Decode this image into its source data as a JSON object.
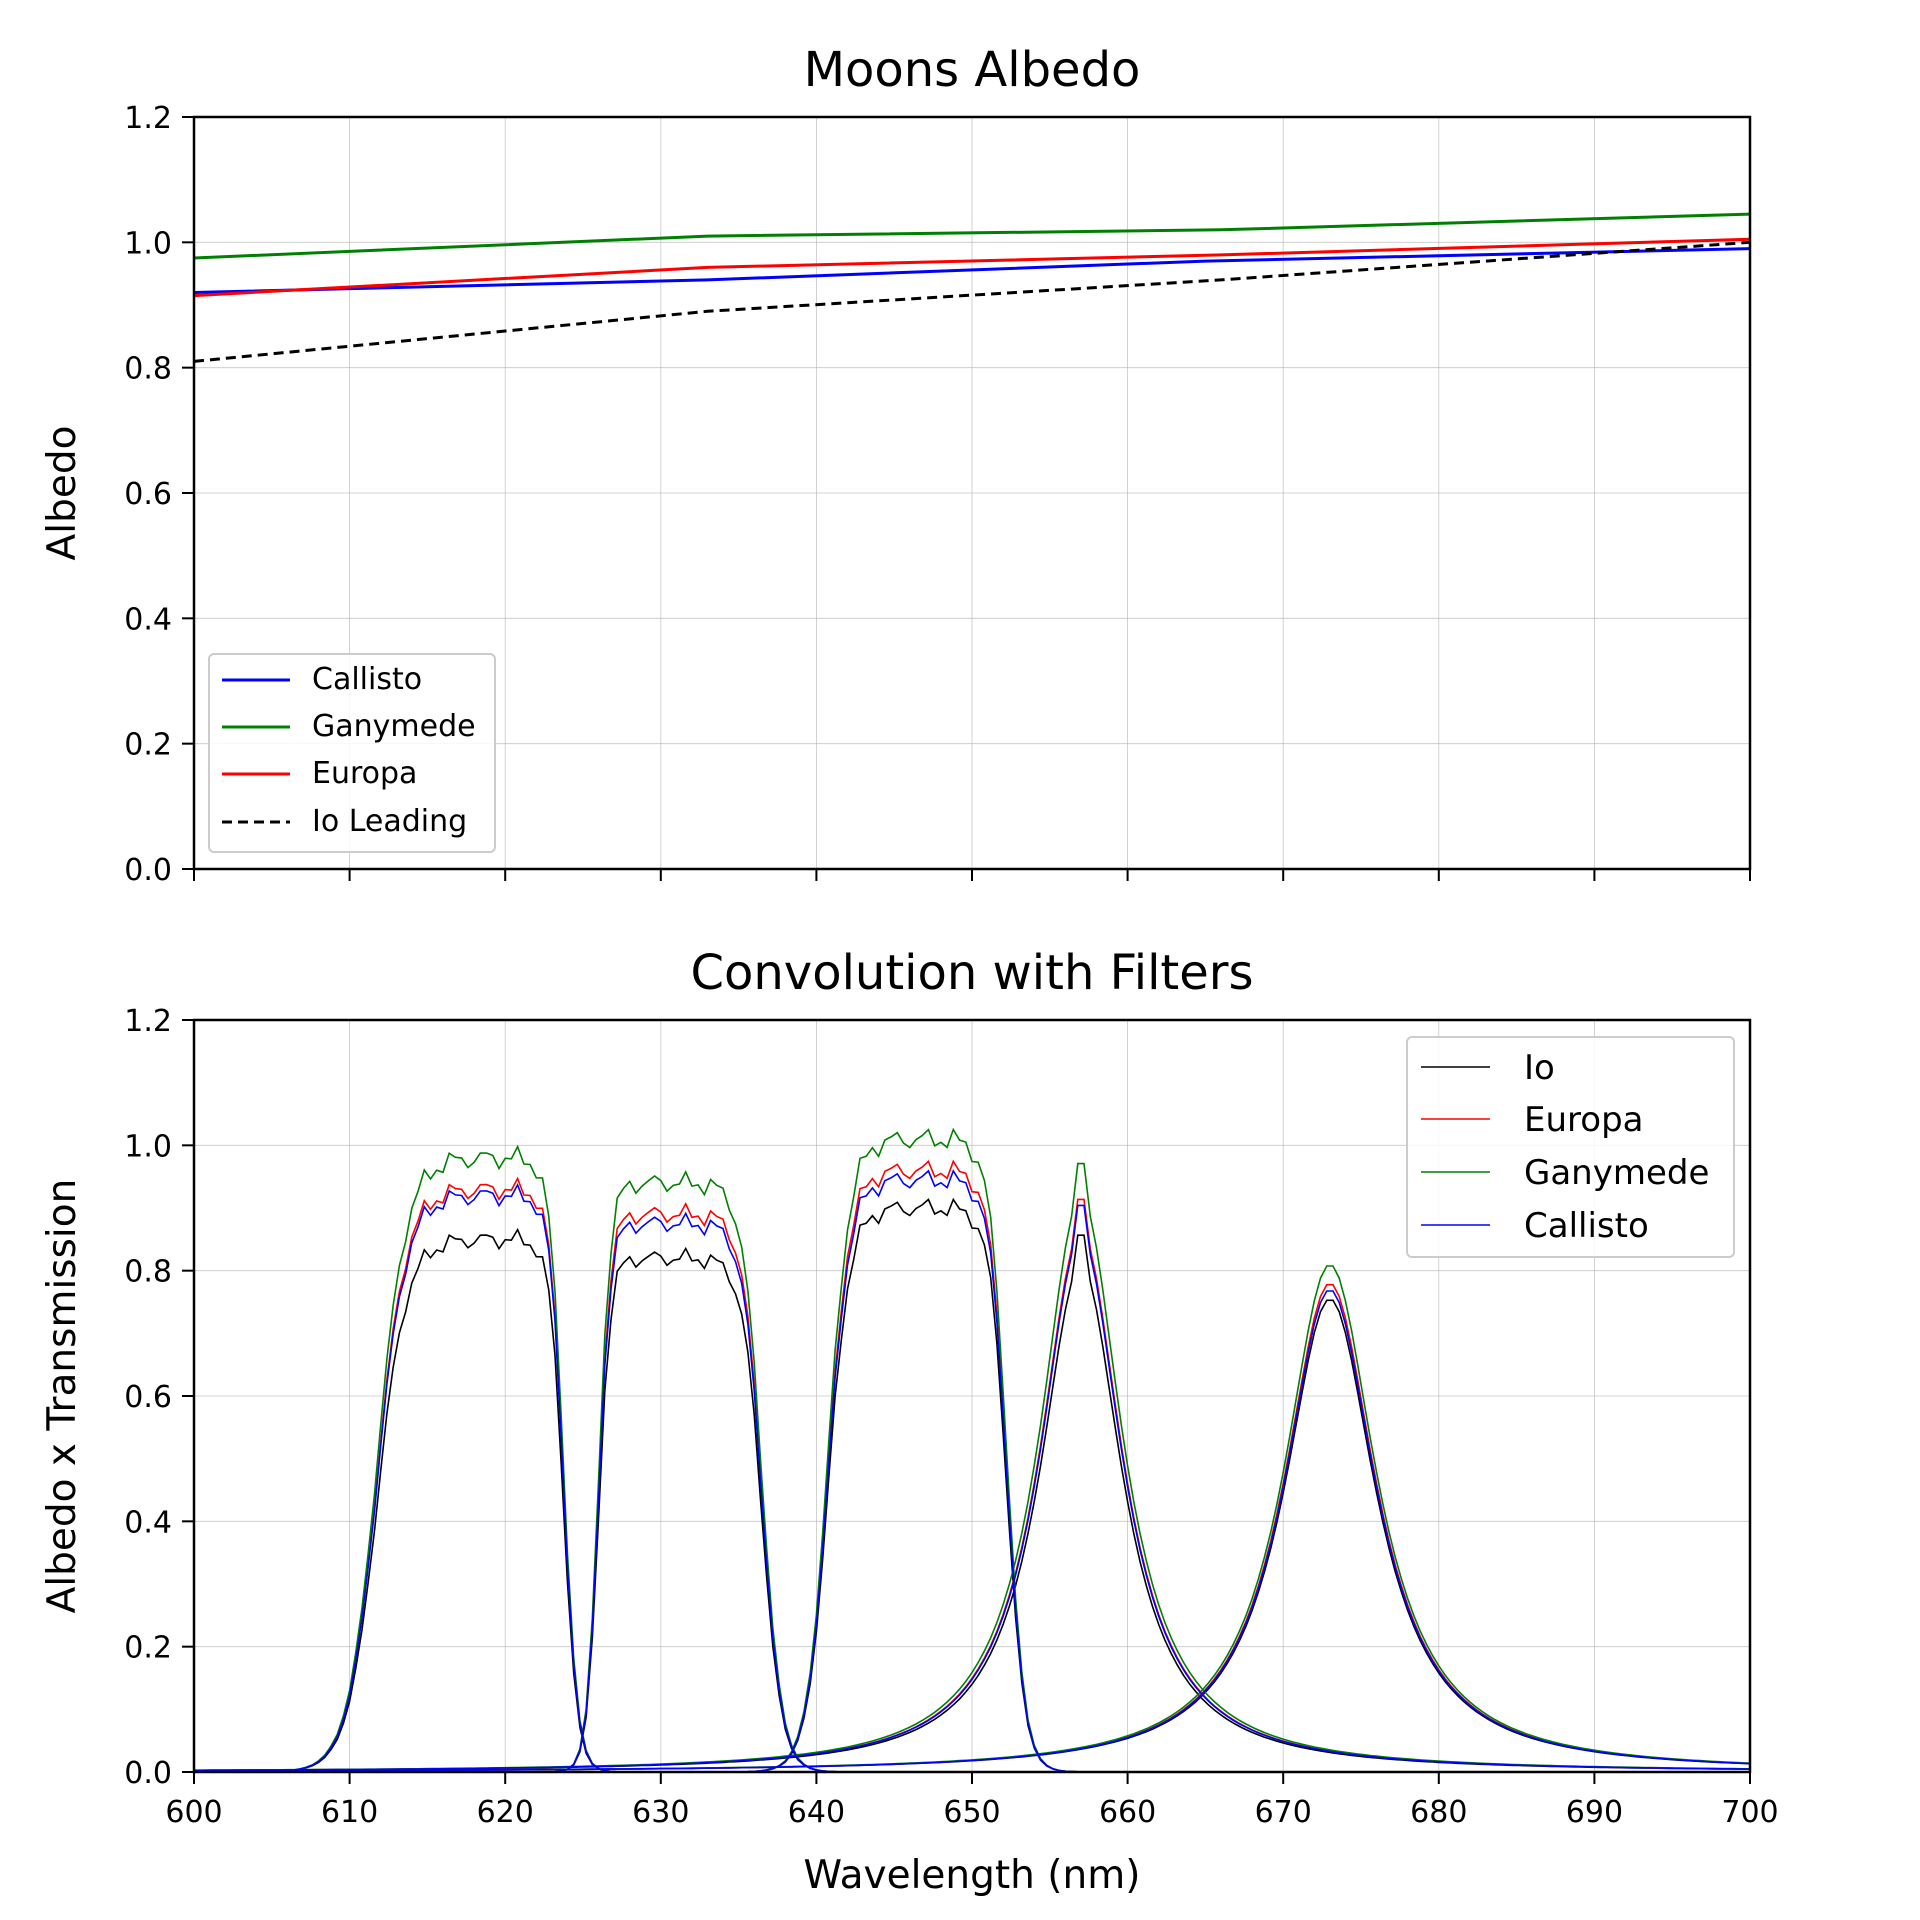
{
  "chart_data": [
    {
      "type": "line",
      "title": "Moons Albedo",
      "xlabel": "",
      "ylabel": "Albedo",
      "xlim": [
        600,
        700
      ],
      "ylim": [
        0.0,
        1.2
      ],
      "xticks": [
        600,
        610,
        620,
        630,
        640,
        650,
        660,
        670,
        680,
        690,
        700
      ],
      "xtick_labels_shown": false,
      "yticks": [
        "0.0",
        "0.2",
        "0.4",
        "0.6",
        "0.8",
        "1.0",
        "1.2"
      ],
      "grid": true,
      "legend": "lower-left",
      "series": [
        {
          "name": "Callisto",
          "color": "#0000ff",
          "style": "solid",
          "x": [
            600,
            633,
            665,
            700
          ],
          "y": [
            0.92,
            0.94,
            0.97,
            0.99
          ]
        },
        {
          "name": "Ganymede",
          "color": "#008000",
          "style": "solid",
          "x": [
            600,
            633,
            666,
            700
          ],
          "y": [
            0.975,
            1.01,
            1.02,
            1.045
          ]
        },
        {
          "name": "Europa",
          "color": "#ff0000",
          "style": "solid",
          "x": [
            600,
            633,
            666,
            700
          ],
          "y": [
            0.915,
            0.96,
            0.98,
            1.005
          ]
        },
        {
          "name": "Io Leading",
          "color": "#000000",
          "style": "dashed",
          "x": [
            600,
            633,
            666,
            700
          ],
          "y": [
            0.81,
            0.89,
            0.94,
            1.0
          ]
        }
      ]
    },
    {
      "type": "line",
      "title": "Convolution with Filters",
      "xlabel": "Wavelength (nm)",
      "ylabel": "Albedo x Transmission",
      "xlim": [
        600,
        700
      ],
      "ylim": [
        0.0,
        1.2
      ],
      "xticks": [
        "600",
        "610",
        "620",
        "630",
        "640",
        "650",
        "660",
        "670",
        "680",
        "690",
        "700"
      ],
      "yticks": [
        "0.0",
        "0.2",
        "0.4",
        "0.6",
        "0.8",
        "1.0",
        "1.2"
      ],
      "grid": true,
      "legend": "top-right",
      "filters": [
        {
          "band": [
            608,
            625
          ],
          "peak_range": [
            614.5,
            623
          ],
          "rise": [
            608,
            615.5
          ],
          "fall": [
            622,
            625.5
          ]
        },
        {
          "band": [
            624,
            640
          ],
          "peak_range": [
            627,
            635
          ],
          "rise": [
            624.5,
            627.5
          ],
          "fall": [
            634,
            639
          ]
        },
        {
          "band": [
            638,
            655
          ],
          "peak_range": [
            643,
            650.5
          ],
          "rise": [
            638,
            643.5
          ],
          "fall": [
            650,
            654.5
          ]
        },
        {
          "center": 657,
          "peak": 1.0
        },
        {
          "center": 673,
          "peak": 0.77
        }
      ],
      "series": [
        {
          "name": "Io",
          "color": "#000000",
          "plateaus": [
            0.85,
            0.82,
            0.9,
            0.9,
            0.755
          ]
        },
        {
          "name": "Europa",
          "color": "#ff0000",
          "plateaus": [
            0.93,
            0.89,
            0.96,
            0.96,
            0.78
          ]
        },
        {
          "name": "Ganymede",
          "color": "#008000",
          "plateaus": [
            0.98,
            0.94,
            1.01,
            1.02,
            0.81
          ]
        },
        {
          "name": "Callisto",
          "color": "#0000ff",
          "plateaus": [
            0.92,
            0.875,
            0.945,
            0.95,
            0.77
          ]
        }
      ]
    }
  ]
}
